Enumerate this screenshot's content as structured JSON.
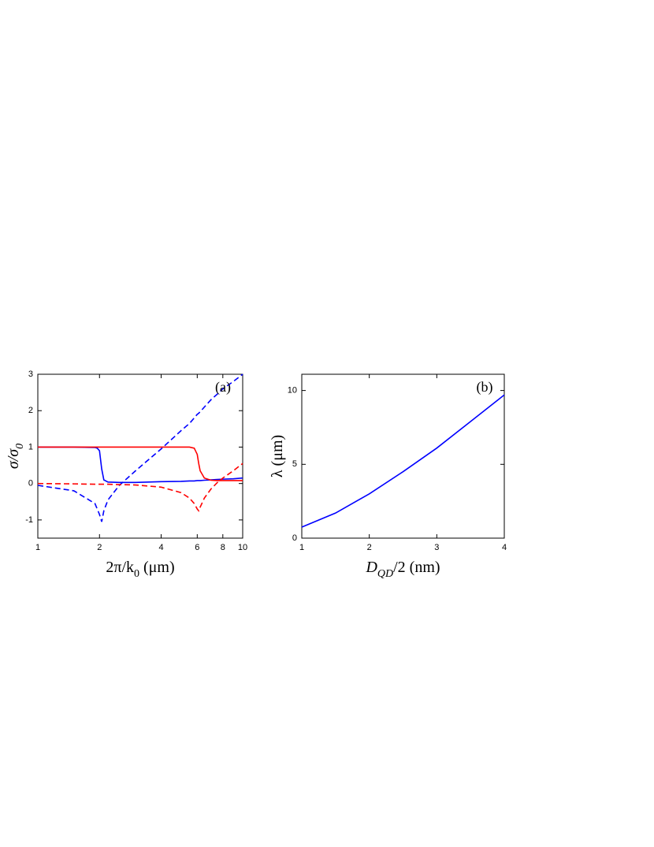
{
  "chart_data": [
    {
      "type": "line",
      "annotation": "(a)",
      "xlabel": [
        "2π/k",
        "0",
        " (μm)"
      ],
      "ylabel": [
        "σ/σ",
        "0"
      ],
      "log_x": true,
      "xlim": [
        1,
        10
      ],
      "xticks": [
        1,
        2,
        4,
        6,
        8,
        10
      ],
      "ylim": [
        -1.5,
        3
      ],
      "yticks": [
        -1,
        0,
        1,
        2,
        3
      ],
      "x": [
        1,
        1.5,
        1.9,
        1.95,
        2.0,
        2.05,
        2.1,
        2.2,
        2.5,
        3,
        4,
        5,
        5.5,
        5.8,
        6.0,
        6.1,
        6.2,
        6.5,
        7,
        7.5,
        8,
        9,
        10
      ],
      "series": [
        {
          "color": "#0000ff",
          "dashed": false,
          "values": [
            1,
            1,
            0.99,
            0.97,
            0.9,
            0.4,
            0.1,
            0.04,
            0.03,
            0.03,
            0.05,
            0.06,
            0.07,
            0.07,
            0.08,
            0.08,
            0.08,
            0.09,
            0.1,
            0.11,
            0.12,
            0.13,
            0.15
          ]
        },
        {
          "color": "#ff0000",
          "dashed": false,
          "values": [
            1,
            1,
            1,
            1,
            1,
            1,
            1,
            1,
            1,
            1,
            1,
            1,
            1,
            0.97,
            0.8,
            0.55,
            0.35,
            0.15,
            0.09,
            0.08,
            0.08,
            0.08,
            0.08
          ]
        },
        {
          "color": "#0000ff",
          "dashed": true,
          "values": [
            -0.05,
            -0.2,
            -0.55,
            -0.7,
            -0.85,
            -1.05,
            -0.75,
            -0.45,
            -0.05,
            0.35,
            0.95,
            1.45,
            1.65,
            1.8,
            1.9,
            1.93,
            1.97,
            2.1,
            2.3,
            2.45,
            2.6,
            2.8,
            3.0
          ]
        },
        {
          "color": "#ff0000",
          "dashed": true,
          "values": [
            0,
            -0.01,
            -0.02,
            -0.02,
            -0.02,
            -0.02,
            -0.02,
            -0.02,
            -0.03,
            -0.04,
            -0.1,
            -0.25,
            -0.4,
            -0.55,
            -0.7,
            -0.75,
            -0.65,
            -0.4,
            -0.15,
            0.02,
            0.15,
            0.35,
            0.55
          ]
        }
      ]
    },
    {
      "type": "line",
      "annotation": "(b)",
      "xlabel": [
        "D",
        "QD",
        "/2 (nm)"
      ],
      "ylabel": [
        "λ (μm)"
      ],
      "log_x": false,
      "xlim": [
        1,
        4
      ],
      "xticks": [
        1,
        2,
        3,
        4
      ],
      "ylim": [
        0,
        11.1
      ],
      "yticks": [
        0,
        5,
        10
      ],
      "x": [
        1,
        1.5,
        2,
        2.5,
        3,
        3.5,
        4
      ],
      "series": [
        {
          "color": "#0000ff",
          "dashed": false,
          "values": [
            0.75,
            1.7,
            3.0,
            4.5,
            6.1,
            7.9,
            9.7
          ]
        }
      ]
    }
  ]
}
